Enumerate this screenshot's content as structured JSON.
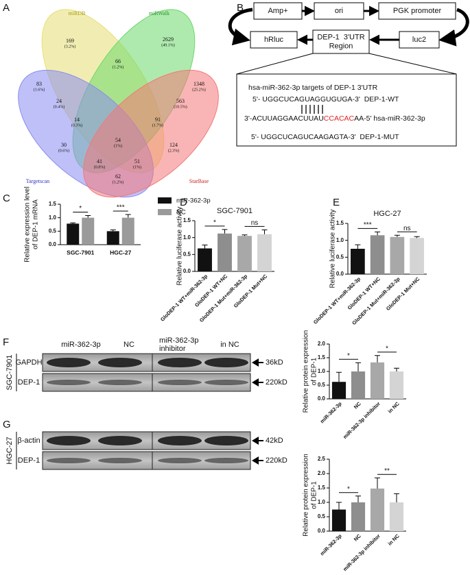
{
  "panel_labels": [
    "A",
    "B",
    "C",
    "D",
    "E",
    "F",
    "G"
  ],
  "venn": {
    "sets": [
      {
        "name": "miRDB",
        "color": "#e6df72",
        "label_color": "#a89a10"
      },
      {
        "name": "miRWalk",
        "color": "#6bd86b",
        "label_color": "#2a8f2a"
      },
      {
        "name": "Targetscan",
        "color": "#8a8cf0",
        "label_color": "#3030c0"
      },
      {
        "name": "StarBase",
        "color": "#f47878",
        "label_color": "#c82020"
      }
    ],
    "regions": [
      {
        "count": 169,
        "percent": "(3.2%)"
      },
      {
        "count": 2629,
        "percent": "(49.1%)"
      },
      {
        "count": 83,
        "percent": "(1.6%)"
      },
      {
        "count": 24,
        "percent": "(0.4%)"
      },
      {
        "count": 66,
        "percent": "(1.2%)"
      },
      {
        "count": 563,
        "percent": "(10.5%)"
      },
      {
        "count": 1348,
        "percent": "(25.2%)"
      },
      {
        "count": 14,
        "percent": "(0.3%)"
      },
      {
        "count": 91,
        "percent": "(1.7%)"
      },
      {
        "count": 54,
        "percent": "(1%)"
      },
      {
        "count": 30,
        "percent": "(0.6%)"
      },
      {
        "count": 124,
        "percent": "(2.3%)"
      },
      {
        "count": 41,
        "percent": "(0.8%)"
      },
      {
        "count": 51,
        "percent": "(1%)"
      },
      {
        "count": 62,
        "percent": "(1.2%)"
      }
    ]
  },
  "diagram": {
    "boxes": [
      [
        "Amp+"
      ],
      [
        "ori"
      ],
      [
        "PGK promoter"
      ],
      [
        "hRluc"
      ],
      [
        "DEP-1  3'UTR",
        "Region"
      ],
      [
        "luc2"
      ]
    ],
    "detail": {
      "title": "hsa-miR-362-3p targets of DEP-1 3'UTR",
      "wt": "5'- UGGCUCAGUAGGUGUGA-3'  DEP-1-WT",
      "mirna": [
        "3'-ACUUAGGAACUUAU",
        "CCACAC",
        "AA-5' hsa-miR-362-3p"
      ],
      "highlight_color": "#e02020",
      "mut": "5'- UGGCUCAGUCAAGAGTA-3'  DEP-1-MUT"
    }
  },
  "blots": [
    {
      "cell_line": "SGC-7901",
      "lanes": [
        [
          "miR-362-3p"
        ],
        [
          "NC"
        ],
        [
          "miR-362-3p",
          "inhibitor"
        ],
        [
          "in NC"
        ]
      ],
      "rows": [
        {
          "protein": "GAPDH",
          "size": "36kD"
        },
        {
          "protein": "DEP-1",
          "size": "220kD"
        }
      ]
    },
    {
      "cell_line": "HGC-27",
      "rows": [
        {
          "protein": "β-actin",
          "size": "42kD"
        },
        {
          "protein": "DEP-1",
          "size": "220kD"
        }
      ]
    }
  ],
  "chart_data": [
    {
      "type": "bar",
      "categories": [
        "SGC-7901",
        "HGC-27"
      ],
      "series": [
        {
          "name": "miR-362-3p",
          "color": "#111111",
          "values": [
            0.78,
            0.5
          ],
          "errors": [
            0.03,
            0.05
          ]
        },
        {
          "name": "NC",
          "color": "#9a9a9a",
          "values": [
            1.0,
            1.0
          ],
          "errors": [
            0.08,
            0.12
          ]
        }
      ],
      "ylabel": [
        "Relative expression level",
        "of DEP-1 mRNA"
      ],
      "ylim": [
        0,
        1.5
      ],
      "yticks": [
        {
          "value": 0,
          "label": "0.0"
        },
        0.5,
        {
          "value": 1,
          "label": "1.0"
        },
        1.5
      ],
      "significance": [
        "*",
        "***"
      ]
    },
    {
      "type": "bar",
      "title": "SGC-7901",
      "categories": [
        "GloDEP-1 WT+miR-362-3p",
        "GloDEP-1 WT+NC",
        "GloDEP-1 Mut+miR-362-3p",
        "GloDEP-1 Mut+NC"
      ],
      "values": [
        0.68,
        1.12,
        1.05,
        1.1
      ],
      "errors": [
        0.1,
        0.12,
        0.03,
        0.13
      ],
      "colors": [
        "#111111",
        "#8e8e8e",
        "#a8a8a8",
        "#d4d4d4"
      ],
      "ylabel": [
        "Relative luciferase activity"
      ],
      "ylim": [
        0,
        1.5
      ],
      "yticks": [
        {
          "value": 0,
          "label": "0.0"
        },
        0.5,
        {
          "value": 1,
          "label": "1.0"
        },
        1.5
      ],
      "significance": [
        "*",
        "ns"
      ]
    },
    {
      "type": "bar",
      "title": "HGC-27",
      "categories": [
        "GloDEP-1 WT+miR-362-3p",
        "GloDEP-1 WT+NC",
        "GloDEP-1 Mut+miR-362-3p",
        "GloDEP-1 Mut+NC"
      ],
      "values": [
        0.75,
        1.15,
        1.1,
        1.07
      ],
      "errors": [
        0.12,
        0.1,
        0.05,
        0.04
      ],
      "colors": [
        "#111111",
        "#8e8e8e",
        "#a8a8a8",
        "#d4d4d4"
      ],
      "ylabel": [
        "Relative luciferase activity"
      ],
      "ylim": [
        0,
        1.5
      ],
      "yticks": [
        {
          "value": 0,
          "label": "0.0"
        },
        0.5,
        {
          "value": 1,
          "label": "1.0"
        },
        1.5
      ],
      "significance": [
        "***",
        "ns"
      ]
    },
    {
      "type": "bar",
      "categories": [
        "miR-362-3p",
        "NC",
        "miR-362-3p inhibitor",
        "in NC"
      ],
      "values": [
        0.62,
        1.0,
        1.33,
        1.0
      ],
      "errors": [
        0.35,
        0.32,
        0.25,
        0.12
      ],
      "colors": [
        "#111111",
        "#8e8e8e",
        "#a8a8a8",
        "#d4d4d4"
      ],
      "ylabel": [
        "Relative protein expression",
        "of DEP-1"
      ],
      "ylim": [
        0,
        2
      ],
      "yticks": [
        {
          "value": 0,
          "label": "0.0"
        },
        0.5,
        {
          "value": 1,
          "label": "1.0"
        },
        1.5,
        {
          "value": 2,
          "label": "2.0"
        }
      ],
      "significance": [
        "*",
        "*"
      ]
    },
    {
      "type": "bar",
      "categories": [
        "miR-362-3p",
        "NC",
        "miR-362-3p inhibitor",
        "in NC"
      ],
      "values": [
        0.75,
        1.0,
        1.48,
        1.0
      ],
      "errors": [
        0.25,
        0.22,
        0.37,
        0.3
      ],
      "colors": [
        "#111111",
        "#8e8e8e",
        "#a8a8a8",
        "#d4d4d4"
      ],
      "ylabel": [
        "Relative protein expression",
        "of DEP-1"
      ],
      "ylim": [
        0,
        2.5
      ],
      "yticks": [
        {
          "value": 0,
          "label": "0.0"
        },
        0.5,
        {
          "value": 1,
          "label": "1.0"
        },
        1.5,
        {
          "value": 2,
          "label": "2.0"
        },
        2.5
      ],
      "significance": [
        "*",
        "**"
      ]
    }
  ]
}
